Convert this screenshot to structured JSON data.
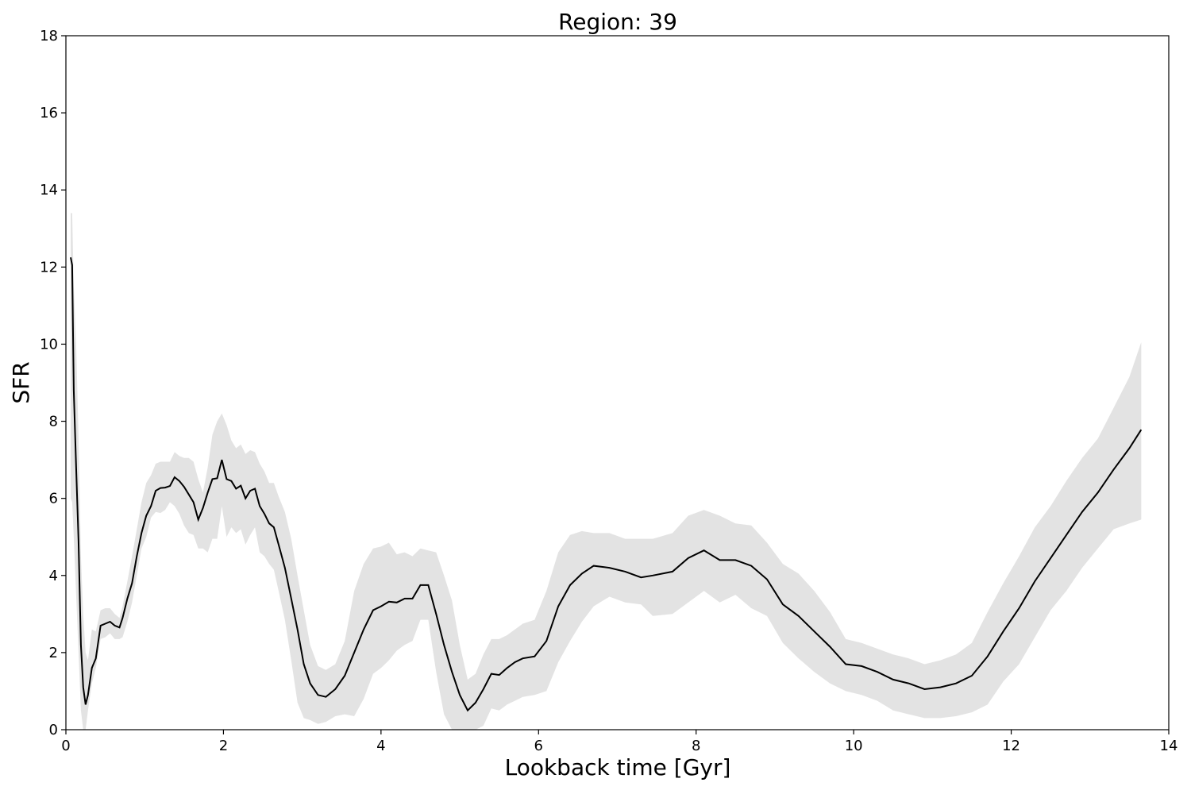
{
  "chart_data": {
    "type": "line",
    "title": "Region: 39",
    "xlabel": "Lookback time [Gyr]",
    "ylabel": "SFR",
    "xlim": [
      0,
      14
    ],
    "ylim": [
      0,
      18
    ],
    "xticks": [
      0,
      2,
      4,
      6,
      8,
      10,
      12,
      14
    ],
    "yticks": [
      0,
      2,
      4,
      6,
      8,
      10,
      12,
      14,
      16,
      18
    ],
    "grid": false,
    "colors": {
      "line": "#000000",
      "band": "#e3e3e3"
    },
    "series": [
      {
        "x": [
          0.06,
          0.08,
          0.1,
          0.13,
          0.16,
          0.19,
          0.22,
          0.25,
          0.28,
          0.33,
          0.38,
          0.44,
          0.5,
          0.56,
          0.62,
          0.68,
          0.72,
          0.78,
          0.84,
          0.9,
          0.96,
          1.02,
          1.08,
          1.14,
          1.2,
          1.26,
          1.32,
          1.38,
          1.44,
          1.5,
          1.56,
          1.62,
          1.68,
          1.74,
          1.8,
          1.86,
          1.92,
          1.98,
          2.04,
          2.1,
          2.16,
          2.22,
          2.28,
          2.34,
          2.4,
          2.46,
          2.52,
          2.58,
          2.64,
          2.7,
          2.78,
          2.86,
          2.94,
          3.02,
          3.1,
          3.2,
          3.3,
          3.42,
          3.54,
          3.66,
          3.78,
          3.9,
          4.0,
          4.1,
          4.2,
          4.3,
          4.4,
          4.5,
          4.6,
          4.7,
          4.8,
          4.9,
          5.0,
          5.1,
          5.2,
          5.3,
          5.4,
          5.5,
          5.6,
          5.7,
          5.8,
          5.95,
          6.1,
          6.25,
          6.4,
          6.55,
          6.7,
          6.9,
          7.1,
          7.3,
          7.45,
          7.7,
          7.9,
          8.1,
          8.3,
          8.5,
          8.7,
          8.9,
          9.1,
          9.3,
          9.5,
          9.7,
          9.9,
          10.1,
          10.3,
          10.5,
          10.7,
          10.9,
          11.1,
          11.3,
          11.5,
          11.7,
          11.9,
          12.1,
          12.3,
          12.5,
          12.7,
          12.9,
          13.1,
          13.3,
          13.5,
          13.65
        ],
        "y": [
          12.25,
          12.05,
          8.8,
          6.8,
          4.9,
          2.2,
          1.1,
          0.65,
          0.9,
          1.6,
          1.85,
          2.7,
          2.75,
          2.8,
          2.7,
          2.65,
          2.9,
          3.4,
          3.8,
          4.5,
          5.1,
          5.55,
          5.8,
          6.2,
          6.27,
          6.28,
          6.32,
          6.55,
          6.45,
          6.3,
          6.1,
          5.9,
          5.45,
          5.75,
          6.15,
          6.5,
          6.52,
          7.0,
          6.5,
          6.45,
          6.25,
          6.33,
          6.0,
          6.2,
          6.25,
          5.8,
          5.6,
          5.35,
          5.25,
          4.8,
          4.2,
          3.4,
          2.6,
          1.7,
          1.2,
          0.9,
          0.85,
          1.05,
          1.4,
          2.0,
          2.6,
          3.1,
          3.2,
          3.32,
          3.3,
          3.4,
          3.4,
          3.75,
          3.75,
          3.0,
          2.2,
          1.5,
          0.9,
          0.5,
          0.7,
          1.05,
          1.45,
          1.42,
          1.6,
          1.75,
          1.85,
          1.9,
          2.3,
          3.2,
          3.75,
          4.05,
          4.25,
          4.2,
          4.1,
          3.95,
          4.0,
          4.1,
          4.45,
          4.65,
          4.4,
          4.4,
          4.25,
          3.9,
          3.25,
          2.95,
          2.55,
          2.15,
          1.7,
          1.65,
          1.5,
          1.3,
          1.2,
          1.05,
          1.1,
          1.2,
          1.4,
          1.9,
          2.55,
          3.15,
          3.85,
          4.45,
          5.05,
          5.65,
          6.15,
          6.75,
          7.3,
          7.78
        ],
        "lower": [
          6.0,
          5.9,
          5.0,
          3.5,
          2.0,
          0.5,
          0.0,
          0.0,
          0.5,
          1.2,
          1.6,
          2.35,
          2.4,
          2.5,
          2.35,
          2.35,
          2.4,
          2.8,
          3.3,
          4.0,
          4.7,
          5.0,
          5.5,
          5.65,
          5.62,
          5.7,
          5.9,
          5.8,
          5.6,
          5.3,
          5.1,
          5.05,
          4.7,
          4.7,
          4.6,
          4.95,
          4.95,
          5.8,
          5.0,
          5.25,
          5.1,
          5.2,
          4.8,
          5.05,
          5.25,
          4.6,
          4.5,
          4.3,
          4.15,
          3.6,
          2.85,
          1.8,
          0.7,
          0.3,
          0.25,
          0.15,
          0.2,
          0.35,
          0.4,
          0.35,
          0.8,
          1.45,
          1.6,
          1.8,
          2.05,
          2.2,
          2.3,
          2.85,
          2.85,
          1.5,
          0.4,
          0.0,
          0.0,
          0.0,
          0.0,
          0.1,
          0.55,
          0.5,
          0.65,
          0.75,
          0.85,
          0.9,
          1.0,
          1.75,
          2.3,
          2.8,
          3.2,
          3.45,
          3.3,
          3.25,
          2.95,
          3.0,
          3.3,
          3.6,
          3.3,
          3.5,
          3.15,
          2.95,
          2.25,
          1.85,
          1.5,
          1.2,
          1.0,
          0.9,
          0.75,
          0.5,
          0.4,
          0.3,
          0.3,
          0.35,
          0.45,
          0.65,
          1.25,
          1.7,
          2.4,
          3.1,
          3.6,
          4.2,
          4.7,
          5.2,
          5.35,
          5.45
        ],
        "upper": [
          13.4,
          13.4,
          11.5,
          10.0,
          7.6,
          4.5,
          3.0,
          2.0,
          1.8,
          2.6,
          2.55,
          3.1,
          3.15,
          3.15,
          3.0,
          2.9,
          3.2,
          3.85,
          4.5,
          5.2,
          5.9,
          6.4,
          6.6,
          6.9,
          6.95,
          6.95,
          6.95,
          7.2,
          7.1,
          7.05,
          7.05,
          6.95,
          6.5,
          6.15,
          6.8,
          7.65,
          8.0,
          8.2,
          7.9,
          7.5,
          7.3,
          7.4,
          7.15,
          7.25,
          7.2,
          6.9,
          6.7,
          6.4,
          6.4,
          6.05,
          5.65,
          4.95,
          4.0,
          3.1,
          2.2,
          1.65,
          1.55,
          1.7,
          2.3,
          3.6,
          4.3,
          4.7,
          4.75,
          4.85,
          4.55,
          4.6,
          4.5,
          4.7,
          4.65,
          4.6,
          4.0,
          3.35,
          2.2,
          1.3,
          1.45,
          1.95,
          2.35,
          2.35,
          2.45,
          2.6,
          2.75,
          2.85,
          3.6,
          4.6,
          5.05,
          5.15,
          5.1,
          5.1,
          4.95,
          4.95,
          4.95,
          5.1,
          5.55,
          5.7,
          5.55,
          5.35,
          5.3,
          4.85,
          4.3,
          4.05,
          3.6,
          3.05,
          2.35,
          2.25,
          2.1,
          1.95,
          1.85,
          1.7,
          1.8,
          1.95,
          2.25,
          3.05,
          3.8,
          4.5,
          5.25,
          5.8,
          6.45,
          7.05,
          7.55,
          8.35,
          9.15,
          10.05
        ]
      }
    ]
  }
}
